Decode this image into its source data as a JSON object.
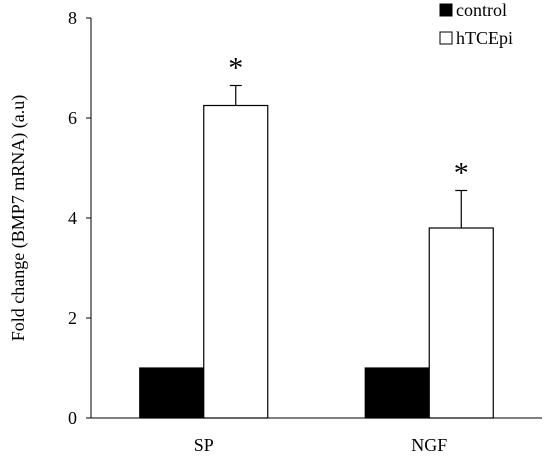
{
  "chart_data": {
    "type": "bar",
    "title": "",
    "xlabel": "",
    "ylabel": "Fold change (BMP7 mRNA) (a.u)",
    "ylim": [
      0,
      8
    ],
    "yticks": [
      "0",
      "2",
      "4",
      "6",
      "8"
    ],
    "grid": false,
    "legend_position": "top-right",
    "categories": [
      "SP",
      "NGF"
    ],
    "series": [
      {
        "name": "control",
        "values": [
          1,
          1
        ],
        "errors": [
          0,
          0
        ],
        "color": "#000000"
      },
      {
        "name": "hTCEpi",
        "values": [
          6.25,
          3.8
        ],
        "errors": [
          0.4,
          0.75
        ],
        "color": "#ffffff"
      }
    ],
    "annotations": [
      {
        "text": "*",
        "category": "SP",
        "series": "hTCEpi"
      },
      {
        "text": "*",
        "category": "NGF",
        "series": "hTCEpi"
      }
    ]
  }
}
